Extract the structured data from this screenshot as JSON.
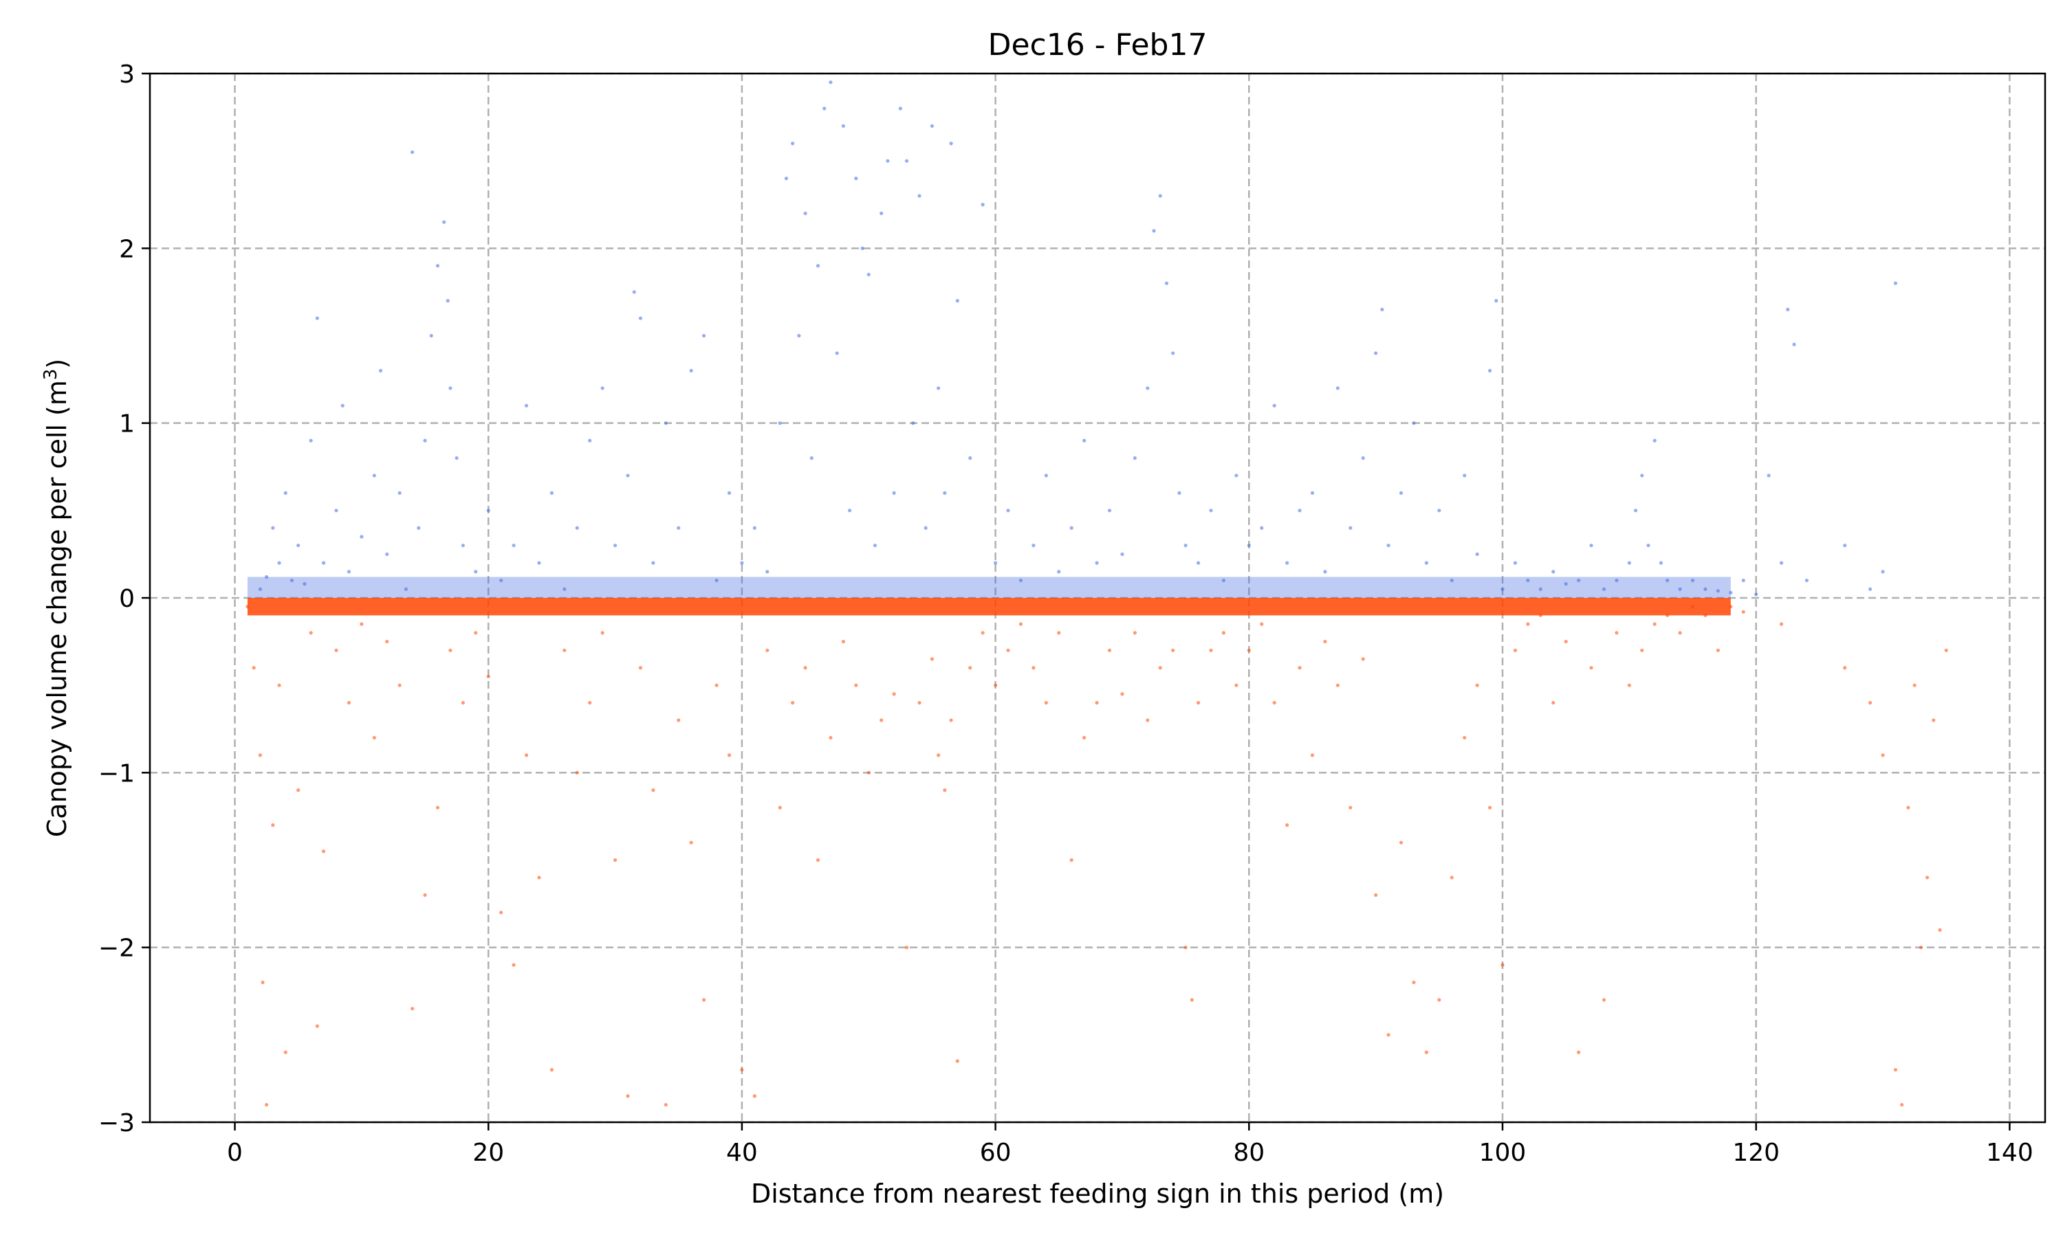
{
  "chart_data": {
    "type": "scatter",
    "title": "Dec16 - Feb17",
    "xlabel": "Distance from nearest feeding sign in this period (m)",
    "ylabel_main": "Canopy volume change per cell (m",
    "ylabel_sup": "3",
    "ylabel_end": ")",
    "xlim": [
      -6.7,
      142.8
    ],
    "ylim": [
      -3,
      3
    ],
    "xticks": [
      0,
      20,
      40,
      60,
      80,
      100,
      120,
      140
    ],
    "xtick_labels": [
      "0",
      "20",
      "40",
      "60",
      "80",
      "100",
      "120",
      "140"
    ],
    "yticks": [
      -3,
      -2,
      -1,
      0,
      1,
      2,
      3
    ],
    "ytick_labels": [
      "−3",
      "−2",
      "−1",
      "0",
      "1",
      "2",
      "3"
    ],
    "grid": true,
    "series": [
      {
        "name": "",
        "color": "#4169e1",
        "points": [
          [
            2,
            0.05
          ],
          [
            2.5,
            0.12
          ],
          [
            3,
            0.4
          ],
          [
            3.5,
            0.2
          ],
          [
            4,
            0.6
          ],
          [
            4.5,
            0.1
          ],
          [
            5,
            0.3
          ],
          [
            5.5,
            0.08
          ],
          [
            6,
            0.9
          ],
          [
            6.5,
            1.6
          ],
          [
            7,
            0.2
          ],
          [
            8,
            0.5
          ],
          [
            8.5,
            1.1
          ],
          [
            9,
            0.15
          ],
          [
            10,
            0.35
          ],
          [
            11,
            0.7
          ],
          [
            11.5,
            1.3
          ],
          [
            12,
            0.25
          ],
          [
            13,
            0.6
          ],
          [
            13.5,
            0.05
          ],
          [
            14,
            2.55
          ],
          [
            14.5,
            0.4
          ],
          [
            15,
            0.9
          ],
          [
            15.5,
            1.5
          ],
          [
            16,
            1.9
          ],
          [
            16.5,
            2.15
          ],
          [
            16.8,
            1.7
          ],
          [
            17,
            1.2
          ],
          [
            17.5,
            0.8
          ],
          [
            18,
            0.3
          ],
          [
            19,
            0.15
          ],
          [
            20,
            0.5
          ],
          [
            21,
            0.1
          ],
          [
            22,
            0.3
          ],
          [
            23,
            1.1
          ],
          [
            24,
            0.2
          ],
          [
            25,
            0.6
          ],
          [
            26,
            0.05
          ],
          [
            27,
            0.4
          ],
          [
            28,
            0.9
          ],
          [
            29,
            1.2
          ],
          [
            30,
            0.3
          ],
          [
            31,
            0.7
          ],
          [
            31.5,
            1.75
          ],
          [
            32,
            1.6
          ],
          [
            33,
            0.2
          ],
          [
            34,
            1.0
          ],
          [
            35,
            0.4
          ],
          [
            36,
            1.3
          ],
          [
            37,
            1.5
          ],
          [
            38,
            0.1
          ],
          [
            39,
            0.6
          ],
          [
            40,
            0.2
          ],
          [
            41,
            0.4
          ],
          [
            42,
            0.15
          ],
          [
            43,
            1.0
          ],
          [
            43.5,
            2.4
          ],
          [
            44,
            2.6
          ],
          [
            44.5,
            1.5
          ],
          [
            45,
            2.2
          ],
          [
            45.5,
            0.8
          ],
          [
            46,
            1.9
          ],
          [
            46.5,
            2.8
          ],
          [
            47,
            2.95
          ],
          [
            47.5,
            1.4
          ],
          [
            48,
            2.7
          ],
          [
            48.5,
            0.5
          ],
          [
            49,
            2.4
          ],
          [
            49.5,
            2.0
          ],
          [
            50,
            1.85
          ],
          [
            50.5,
            0.3
          ],
          [
            51,
            2.2
          ],
          [
            51.5,
            2.5
          ],
          [
            52,
            0.6
          ],
          [
            52.5,
            2.8
          ],
          [
            53,
            2.5
          ],
          [
            53.5,
            1.0
          ],
          [
            54,
            2.3
          ],
          [
            54.5,
            0.4
          ],
          [
            55,
            2.7
          ],
          [
            55.5,
            1.2
          ],
          [
            56,
            0.6
          ],
          [
            56.5,
            2.6
          ],
          [
            57,
            1.7
          ],
          [
            58,
            0.8
          ],
          [
            59,
            2.25
          ],
          [
            60,
            0.2
          ],
          [
            61,
            0.5
          ],
          [
            62,
            0.1
          ],
          [
            63,
            0.3
          ],
          [
            64,
            0.7
          ],
          [
            65,
            0.15
          ],
          [
            66,
            0.4
          ],
          [
            67,
            0.9
          ],
          [
            68,
            0.2
          ],
          [
            69,
            0.5
          ],
          [
            70,
            0.25
          ],
          [
            71,
            0.8
          ],
          [
            72,
            1.2
          ],
          [
            72.5,
            2.1
          ],
          [
            73,
            2.3
          ],
          [
            73.5,
            1.8
          ],
          [
            74,
            1.4
          ],
          [
            74.5,
            0.6
          ],
          [
            75,
            0.3
          ],
          [
            76,
            0.2
          ],
          [
            77,
            0.5
          ],
          [
            78,
            0.1
          ],
          [
            79,
            0.7
          ],
          [
            80,
            0.3
          ],
          [
            81,
            0.4
          ],
          [
            82,
            1.1
          ],
          [
            83,
            0.2
          ],
          [
            84,
            0.5
          ],
          [
            85,
            0.6
          ],
          [
            86,
            0.15
          ],
          [
            87,
            1.2
          ],
          [
            88,
            0.4
          ],
          [
            89,
            0.8
          ],
          [
            90,
            1.4
          ],
          [
            90.5,
            1.65
          ],
          [
            91,
            0.3
          ],
          [
            92,
            0.6
          ],
          [
            93,
            1.0
          ],
          [
            94,
            0.2
          ],
          [
            95,
            0.5
          ],
          [
            96,
            0.1
          ],
          [
            97,
            0.7
          ],
          [
            98,
            0.25
          ],
          [
            99,
            1.3
          ],
          [
            99.5,
            1.7
          ],
          [
            100,
            0.05
          ],
          [
            101,
            0.2
          ],
          [
            102,
            0.1
          ],
          [
            103,
            0.05
          ],
          [
            104,
            0.15
          ],
          [
            105,
            0.08
          ],
          [
            106,
            0.1
          ],
          [
            107,
            0.3
          ],
          [
            108,
            0.05
          ],
          [
            109,
            0.1
          ],
          [
            110,
            0.2
          ],
          [
            110.5,
            0.5
          ],
          [
            111,
            0.7
          ],
          [
            111.5,
            0.3
          ],
          [
            112,
            0.9
          ],
          [
            112.5,
            0.2
          ],
          [
            113,
            0.1
          ],
          [
            114,
            0.05
          ],
          [
            115,
            0.1
          ],
          [
            116,
            0.05
          ],
          [
            117,
            0.04
          ],
          [
            118,
            0.03
          ],
          [
            119,
            0.1
          ],
          [
            120,
            0.02
          ],
          [
            121,
            0.7
          ],
          [
            122,
            0.2
          ],
          [
            122.5,
            1.65
          ],
          [
            123,
            1.45
          ],
          [
            124,
            0.1
          ],
          [
            127,
            0.3
          ],
          [
            129,
            0.05
          ],
          [
            130,
            0.15
          ],
          [
            131,
            1.8
          ]
        ]
      },
      {
        "name": "",
        "color": "#ff4500",
        "points": [
          [
            1,
            -0.05
          ],
          [
            1.5,
            -0.4
          ],
          [
            2,
            -0.9
          ],
          [
            2.2,
            -2.2
          ],
          [
            2.5,
            -2.9
          ],
          [
            3,
            -1.3
          ],
          [
            3.5,
            -0.5
          ],
          [
            4,
            -2.6
          ],
          [
            5,
            -1.1
          ],
          [
            6,
            -0.2
          ],
          [
            6.5,
            -2.45
          ],
          [
            7,
            -1.45
          ],
          [
            8,
            -0.3
          ],
          [
            9,
            -0.6
          ],
          [
            10,
            -0.15
          ],
          [
            11,
            -0.8
          ],
          [
            12,
            -0.25
          ],
          [
            13,
            -0.5
          ],
          [
            14,
            -2.35
          ],
          [
            15,
            -1.7
          ],
          [
            16,
            -1.2
          ],
          [
            17,
            -0.3
          ],
          [
            18,
            -0.6
          ],
          [
            19,
            -0.2
          ],
          [
            20,
            -0.45
          ],
          [
            21,
            -1.8
          ],
          [
            22,
            -2.1
          ],
          [
            23,
            -0.9
          ],
          [
            24,
            -1.6
          ],
          [
            25,
            -2.7
          ],
          [
            26,
            -0.3
          ],
          [
            27,
            -1.0
          ],
          [
            28,
            -0.6
          ],
          [
            29,
            -0.2
          ],
          [
            30,
            -1.5
          ],
          [
            31,
            -2.85
          ],
          [
            32,
            -0.4
          ],
          [
            33,
            -1.1
          ],
          [
            34,
            -2.9
          ],
          [
            35,
            -0.7
          ],
          [
            36,
            -1.4
          ],
          [
            37,
            -2.3
          ],
          [
            38,
            -0.5
          ],
          [
            39,
            -0.9
          ],
          [
            40,
            -2.7
          ],
          [
            41,
            -2.85
          ],
          [
            42,
            -0.3
          ],
          [
            43,
            -1.2
          ],
          [
            44,
            -0.6
          ],
          [
            45,
            -0.4
          ],
          [
            46,
            -1.5
          ],
          [
            47,
            -0.8
          ],
          [
            48,
            -0.25
          ],
          [
            49,
            -0.5
          ],
          [
            50,
            -1.0
          ],
          [
            51,
            -0.7
          ],
          [
            52,
            -0.55
          ],
          [
            53,
            -2.0
          ],
          [
            54,
            -0.6
          ],
          [
            55,
            -0.35
          ],
          [
            55.5,
            -0.9
          ],
          [
            56,
            -1.1
          ],
          [
            56.5,
            -0.7
          ],
          [
            57,
            -2.65
          ],
          [
            58,
            -0.4
          ],
          [
            59,
            -0.2
          ],
          [
            60,
            -0.5
          ],
          [
            61,
            -0.3
          ],
          [
            62,
            -0.15
          ],
          [
            63,
            -0.4
          ],
          [
            64,
            -0.6
          ],
          [
            65,
            -0.2
          ],
          [
            66,
            -1.5
          ],
          [
            67,
            -0.8
          ],
          [
            68,
            -0.6
          ],
          [
            69,
            -0.3
          ],
          [
            70,
            -0.55
          ],
          [
            71,
            -0.2
          ],
          [
            72,
            -0.7
          ],
          [
            73,
            -0.4
          ],
          [
            74,
            -0.3
          ],
          [
            75,
            -2.0
          ],
          [
            75.5,
            -2.3
          ],
          [
            76,
            -0.6
          ],
          [
            77,
            -0.3
          ],
          [
            78,
            -0.2
          ],
          [
            79,
            -0.5
          ],
          [
            80,
            -0.3
          ],
          [
            81,
            -0.15
          ],
          [
            82,
            -0.6
          ],
          [
            83,
            -1.3
          ],
          [
            84,
            -0.4
          ],
          [
            85,
            -0.9
          ],
          [
            86,
            -0.25
          ],
          [
            87,
            -0.5
          ],
          [
            88,
            -1.2
          ],
          [
            89,
            -0.35
          ],
          [
            90,
            -1.7
          ],
          [
            91,
            -2.5
          ],
          [
            92,
            -1.4
          ],
          [
            93,
            -2.2
          ],
          [
            94,
            -2.6
          ],
          [
            95,
            -2.3
          ],
          [
            96,
            -1.6
          ],
          [
            97,
            -0.8
          ],
          [
            98,
            -0.5
          ],
          [
            99,
            -1.2
          ],
          [
            100,
            -2.1
          ],
          [
            101,
            -0.3
          ],
          [
            102,
            -0.15
          ],
          [
            103,
            -0.1
          ],
          [
            104,
            -0.6
          ],
          [
            105,
            -0.25
          ],
          [
            106,
            -2.6
          ],
          [
            107,
            -0.4
          ],
          [
            108,
            -2.3
          ],
          [
            109,
            -0.2
          ],
          [
            110,
            -0.5
          ],
          [
            111,
            -0.3
          ],
          [
            112,
            -0.15
          ],
          [
            113,
            -0.1
          ],
          [
            114,
            -0.2
          ],
          [
            115,
            -0.05
          ],
          [
            116,
            -0.1
          ],
          [
            117,
            -0.3
          ],
          [
            118,
            -0.05
          ],
          [
            119,
            -0.08
          ],
          [
            122,
            -0.15
          ],
          [
            127,
            -0.4
          ],
          [
            129,
            -0.6
          ],
          [
            130,
            -0.9
          ],
          [
            131,
            -2.7
          ],
          [
            131.5,
            -2.9
          ],
          [
            132,
            -1.2
          ],
          [
            132.5,
            -0.5
          ],
          [
            133,
            -2.0
          ],
          [
            133.5,
            -1.6
          ],
          [
            134,
            -0.7
          ],
          [
            134.5,
            -1.9
          ],
          [
            135,
            -0.3
          ]
        ]
      }
    ]
  }
}
